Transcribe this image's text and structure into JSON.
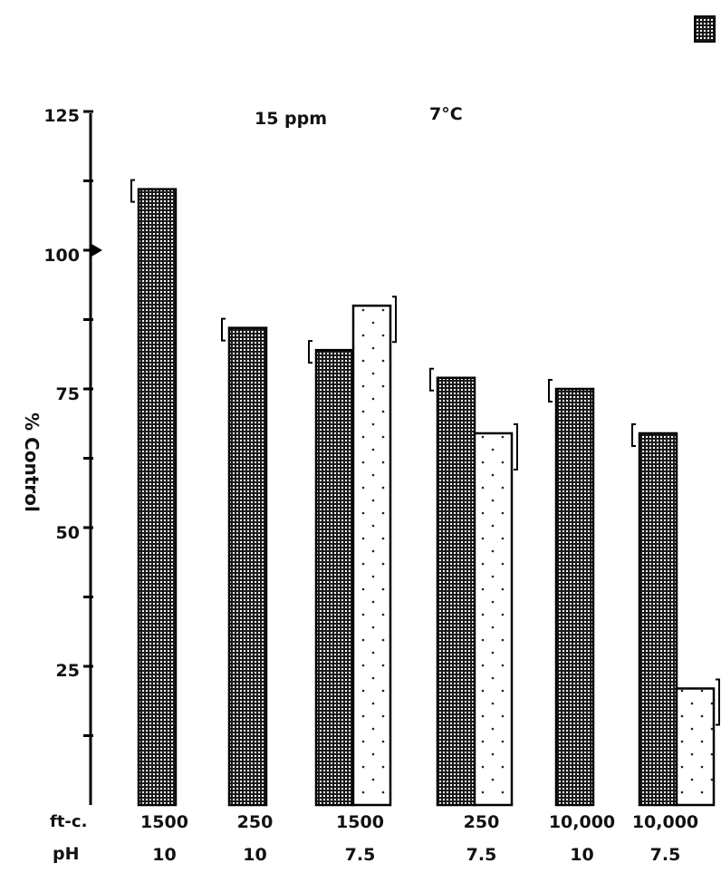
{
  "chart_data": {
    "type": "bar",
    "title": "",
    "annotations": [
      "15 ppm",
      "7°C"
    ],
    "ylabel": "% Control",
    "xlabel": "",
    "ylim": [
      0,
      125
    ],
    "yticks": [
      "25",
      "50",
      "75",
      "100",
      "125"
    ],
    "row_labels": [
      "ft-c.",
      "pH"
    ],
    "categories": [
      {
        "ftc": "1500",
        "ph": "10"
      },
      {
        "ftc": "250",
        "ph": "10"
      },
      {
        "ftc": "1500",
        "ph": "7.5"
      },
      {
        "ftc": "250",
        "ph": "7.5"
      },
      {
        "ftc": "10,000",
        "ph": "10"
      },
      {
        "ftc": "10,000",
        "ph": "7.5"
      }
    ],
    "series": [
      {
        "pattern": "dense-grid",
        "values": [
          111,
          86,
          82,
          77,
          75,
          67
        ]
      },
      {
        "pattern": "sparse-dots",
        "values": [
          null,
          null,
          90,
          67,
          null,
          21
        ]
      }
    ],
    "grid": false,
    "legend": "top-right"
  }
}
